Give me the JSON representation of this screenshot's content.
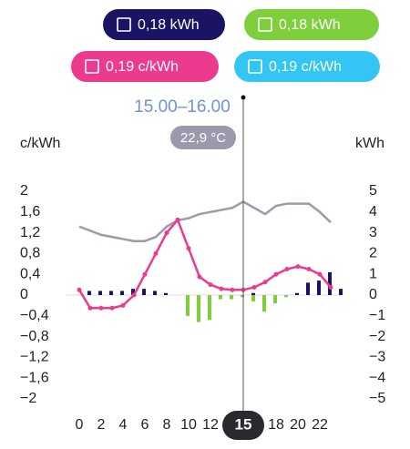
{
  "summary": [
    {
      "label": "0,18 kWh",
      "color": "#1b1464"
    },
    {
      "label": "0,18 kWh",
      "color": "#7fcf3c"
    },
    {
      "label": "0,19 c/kWh",
      "color": "#ec3a8f"
    },
    {
      "label": "0,19 c/kWh",
      "color": "#33c5f3"
    }
  ],
  "chart_data": {
    "type": "combo",
    "selected_time": "15.00–16.00",
    "selected_temperature": "22,9 °C",
    "y_label": "c/kWh",
    "y2_label": "kWh",
    "x": [
      0,
      1,
      2,
      3,
      4,
      5,
      6,
      7,
      8,
      9,
      10,
      11,
      12,
      13,
      14,
      15,
      16,
      17,
      18,
      19,
      20,
      21,
      22,
      23
    ],
    "xlim": [
      0,
      23
    ],
    "xticks": [
      0,
      2,
      4,
      6,
      8,
      10,
      12,
      18,
      20,
      22
    ],
    "selected_x": 15,
    "ylim": [
      -2,
      2
    ],
    "yticks": [
      2,
      {
        "value": 1.6,
        "label": "1,6"
      },
      {
        "value": 1.2,
        "label": "1,2"
      },
      {
        "value": 0.8,
        "label": "0,8"
      },
      {
        "value": 0.4,
        "label": "0,4"
      },
      0,
      {
        "value": -0.4,
        "label": "−0,4"
      },
      {
        "value": -0.8,
        "label": "−0,8"
      },
      {
        "value": -1.2,
        "label": "−1,2"
      },
      {
        "value": -1.6,
        "label": "−1,6"
      },
      {
        "value": -2,
        "label": "−2"
      }
    ],
    "y2lim": [
      -5,
      5
    ],
    "y2ticks": [
      5,
      4,
      3,
      2,
      1,
      0,
      {
        "value": -1,
        "label": "−1"
      },
      {
        "value": -2,
        "label": "−2"
      },
      {
        "value": -3,
        "label": "−3"
      },
      {
        "value": -4,
        "label": "−4"
      },
      {
        "value": -5,
        "label": "−5"
      }
    ],
    "series": [
      {
        "kind": "bar",
        "axis": "y2",
        "color": "#1b1464",
        "values": [
          0.2,
          0.2,
          0.2,
          0.2,
          0.3,
          0.3,
          0.2,
          0.1,
          0,
          0,
          0,
          0,
          0,
          0,
          0,
          0.1,
          0,
          0,
          0,
          0.1,
          0.6,
          0.7,
          1.1,
          0.3
        ]
      },
      {
        "kind": "bar",
        "axis": "y2",
        "color": "#7fcf3c",
        "values": [
          0,
          0,
          0,
          0,
          0,
          0,
          0,
          0,
          0,
          -1.0,
          -1.3,
          -1.2,
          -0.2,
          -0.2,
          -0.1,
          -0.3,
          -0.8,
          -0.4,
          -0.1,
          0,
          0,
          0,
          0,
          0
        ]
      },
      {
        "kind": "line",
        "axis": "y2",
        "color": "#9b9bad",
        "values": [
          3.3,
          3.1,
          2.9,
          2.8,
          2.7,
          2.6,
          2.6,
          2.8,
          3.3,
          3.6,
          3.7,
          3.9,
          4.0,
          4.1,
          4.2,
          4.5,
          4.2,
          3.9,
          4.3,
          4.4,
          4.4,
          4.4,
          4.0,
          3.5
        ]
      },
      {
        "kind": "line",
        "color": "#ec3a8f",
        "dots": true,
        "values": [
          0.1,
          -0.25,
          -0.25,
          -0.25,
          -0.2,
          0,
          0.4,
          0.8,
          1.2,
          1.45,
          0.9,
          0.35,
          0.2,
          0.12,
          0.1,
          0.1,
          0.15,
          0.25,
          0.4,
          0.5,
          0.55,
          0.5,
          0.4,
          0.15
        ]
      }
    ]
  }
}
